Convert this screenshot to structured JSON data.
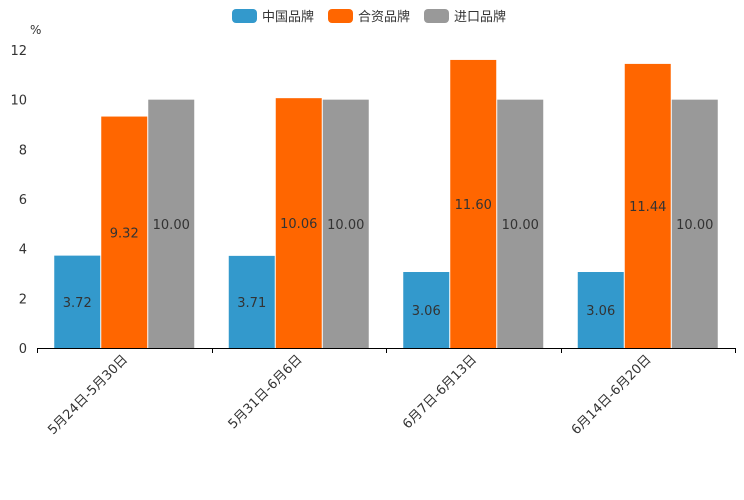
{
  "chart_data": {
    "type": "bar",
    "title": "",
    "xlabel": "",
    "ylabel": "%",
    "ylim": [
      0,
      12
    ],
    "yticks": [
      0,
      2,
      4,
      6,
      8,
      10,
      12
    ],
    "categories": [
      "5月24日-5月30日",
      "5月31日-6月6日",
      "6月7日-6月13日",
      "6月14日-6月20日"
    ],
    "series": [
      {
        "name": "中国品牌",
        "color": "#3399CC",
        "values": [
          3.72,
          3.71,
          3.06,
          3.06
        ],
        "labels": [
          "3.72",
          "3.71",
          "3.06",
          "3.06"
        ]
      },
      {
        "name": "合资品牌",
        "color": "#FF6600",
        "values": [
          9.32,
          10.06,
          11.6,
          11.44
        ],
        "labels": [
          "9.32",
          "10.06",
          "11.60",
          "11.44"
        ]
      },
      {
        "name": "进口品牌",
        "color": "#999999",
        "values": [
          10.0,
          10.0,
          10.0,
          10.0
        ],
        "labels": [
          "10.00",
          "10.00",
          "10.00",
          "10.00"
        ]
      }
    ],
    "legend_position": "top-center",
    "grid": false
  }
}
